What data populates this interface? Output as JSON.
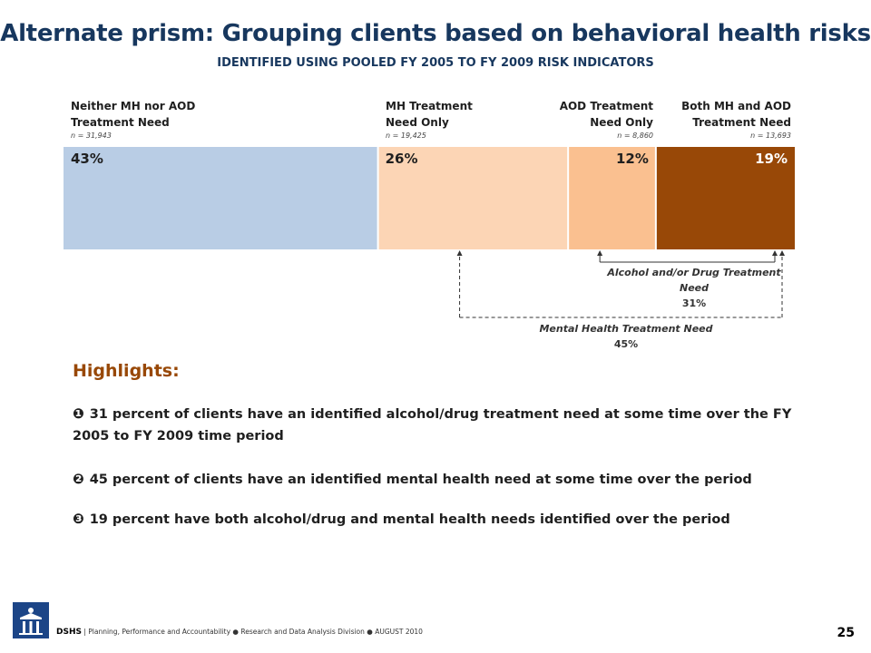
{
  "header": {
    "title": "Alternate prism: Grouping clients based on behavioral health risks",
    "subtitle": "IDENTIFIED USING POOLED FY 2005 TO FY 2009 RISK INDICATORS"
  },
  "chart_data": {
    "type": "bar",
    "orientation": "horizontal-stacked",
    "categories": [
      "Neither MH nor AOD Treatment Need",
      "MH Treatment Need Only",
      "AOD Treatment Need Only",
      "Both MH and AOD Treatment Need"
    ],
    "values": [
      43,
      26,
      12,
      19
    ],
    "value_labels": [
      "43%",
      "26%",
      "12%",
      "19%"
    ],
    "n_labels": [
      "n = 31,943",
      "n = 19,425",
      "n = 8,860",
      "n = 13,693"
    ],
    "colors": [
      "#b9cde5",
      "#fcd5b5",
      "#fac090",
      "#984807"
    ],
    "label_colors": [
      "#1f1f1f",
      "#1f1f1f",
      "#1f1f1f",
      "#ffffff"
    ],
    "annotations": [
      {
        "text": "Alcohol and/or Drug Treatment Need",
        "value": "31%",
        "spans": [
          2,
          3
        ]
      },
      {
        "text": "Mental Health Treatment Need",
        "value": "45%",
        "spans": [
          1,
          3
        ]
      }
    ]
  },
  "segment_labels": [
    {
      "line1": "Neither MH nor AOD",
      "line2": "Treatment Need"
    },
    {
      "line1": "MH Treatment",
      "line2": "Need Only"
    },
    {
      "line1": "AOD Treatment",
      "line2": "Need Only"
    },
    {
      "line1": "Both MH and AOD",
      "line2": "Treatment Need"
    }
  ],
  "highlights": {
    "heading": "Highlights:",
    "items": [
      {
        "marker": "❶",
        "text": "31 percent of clients have an identified alcohol/drug treatment need at some time over the FY 2005 to FY 2009 time period"
      },
      {
        "marker": "❷",
        "text": "45 percent of clients have an identified mental health need at some time over the period"
      },
      {
        "marker": "❸",
        "text": "19 percent have both alcohol/drug and mental health needs identified over the period"
      }
    ]
  },
  "footer": {
    "org": "DSHS",
    "text": "Planning, Performance and Accountability ● Research and Data Analysis Division ● AUGUST 2010",
    "page_number": "25",
    "logo_icon": "dshs-logo-icon"
  }
}
